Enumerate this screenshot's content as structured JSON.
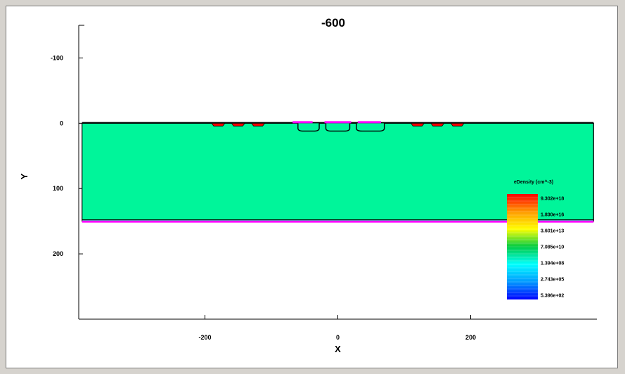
{
  "chart_data": {
    "type": "heatmap",
    "title": "-600",
    "xlabel": "X",
    "ylabel": "Y",
    "xlim": [
      -390,
      390
    ],
    "ylim": [
      -150,
      300
    ],
    "y_inverted": true,
    "x_ticks": [
      -200,
      0,
      200
    ],
    "x_tick_labels": [
      "-200",
      "0",
      "200"
    ],
    "y_ticks": [
      -100,
      0,
      100,
      200
    ],
    "y_tick_labels": [
      "-100",
      "0",
      "100",
      "200"
    ],
    "field": "eDensity (cm^-3)",
    "region": {
      "x": [
        -385,
        385
      ],
      "y": [
        0,
        150
      ],
      "base_level": "1.394e+08 to 7.085e+10 (green)"
    },
    "pockets": [
      {
        "x": [
          -60,
          -28
        ],
        "depth": 12
      },
      {
        "x": [
          -18,
          18
        ],
        "depth": 12
      },
      {
        "x": [
          28,
          70
        ],
        "depth": 12
      }
    ],
    "surface_contacts_red": [
      {
        "x": [
          -190,
          -170
        ]
      },
      {
        "x": [
          -160,
          -140
        ]
      },
      {
        "x": [
          -130,
          -110
        ]
      },
      {
        "x": [
          110,
          130
        ]
      },
      {
        "x": [
          140,
          160
        ]
      },
      {
        "x": [
          170,
          190
        ]
      }
    ],
    "surface_contacts_magenta": [
      {
        "x": [
          -68,
          -38
        ]
      },
      {
        "x": [
          -20,
          20
        ]
      },
      {
        "x": [
          30,
          65
        ]
      }
    ],
    "bottom_contact_magenta": {
      "x": [
        -385,
        385
      ],
      "y": 150
    },
    "legend": {
      "title": "eDensity (cm^-3)",
      "placement": "right",
      "labels": [
        "9.302e+18",
        "1.830e+16",
        "3.601e+13",
        "7.085e+10",
        "1.394e+08",
        "2.743e+05",
        "5.396e+02"
      ],
      "color_stops": [
        "#ff0000",
        "#ff9900",
        "#ffff00",
        "#00cc44",
        "#00ffff",
        "#0099ff",
        "#0000ff"
      ]
    },
    "colors": {
      "fill": "#00f59a",
      "contact_red": "#ff0000",
      "contact_magenta": "#ff00ff",
      "boundary": "#000000"
    }
  }
}
